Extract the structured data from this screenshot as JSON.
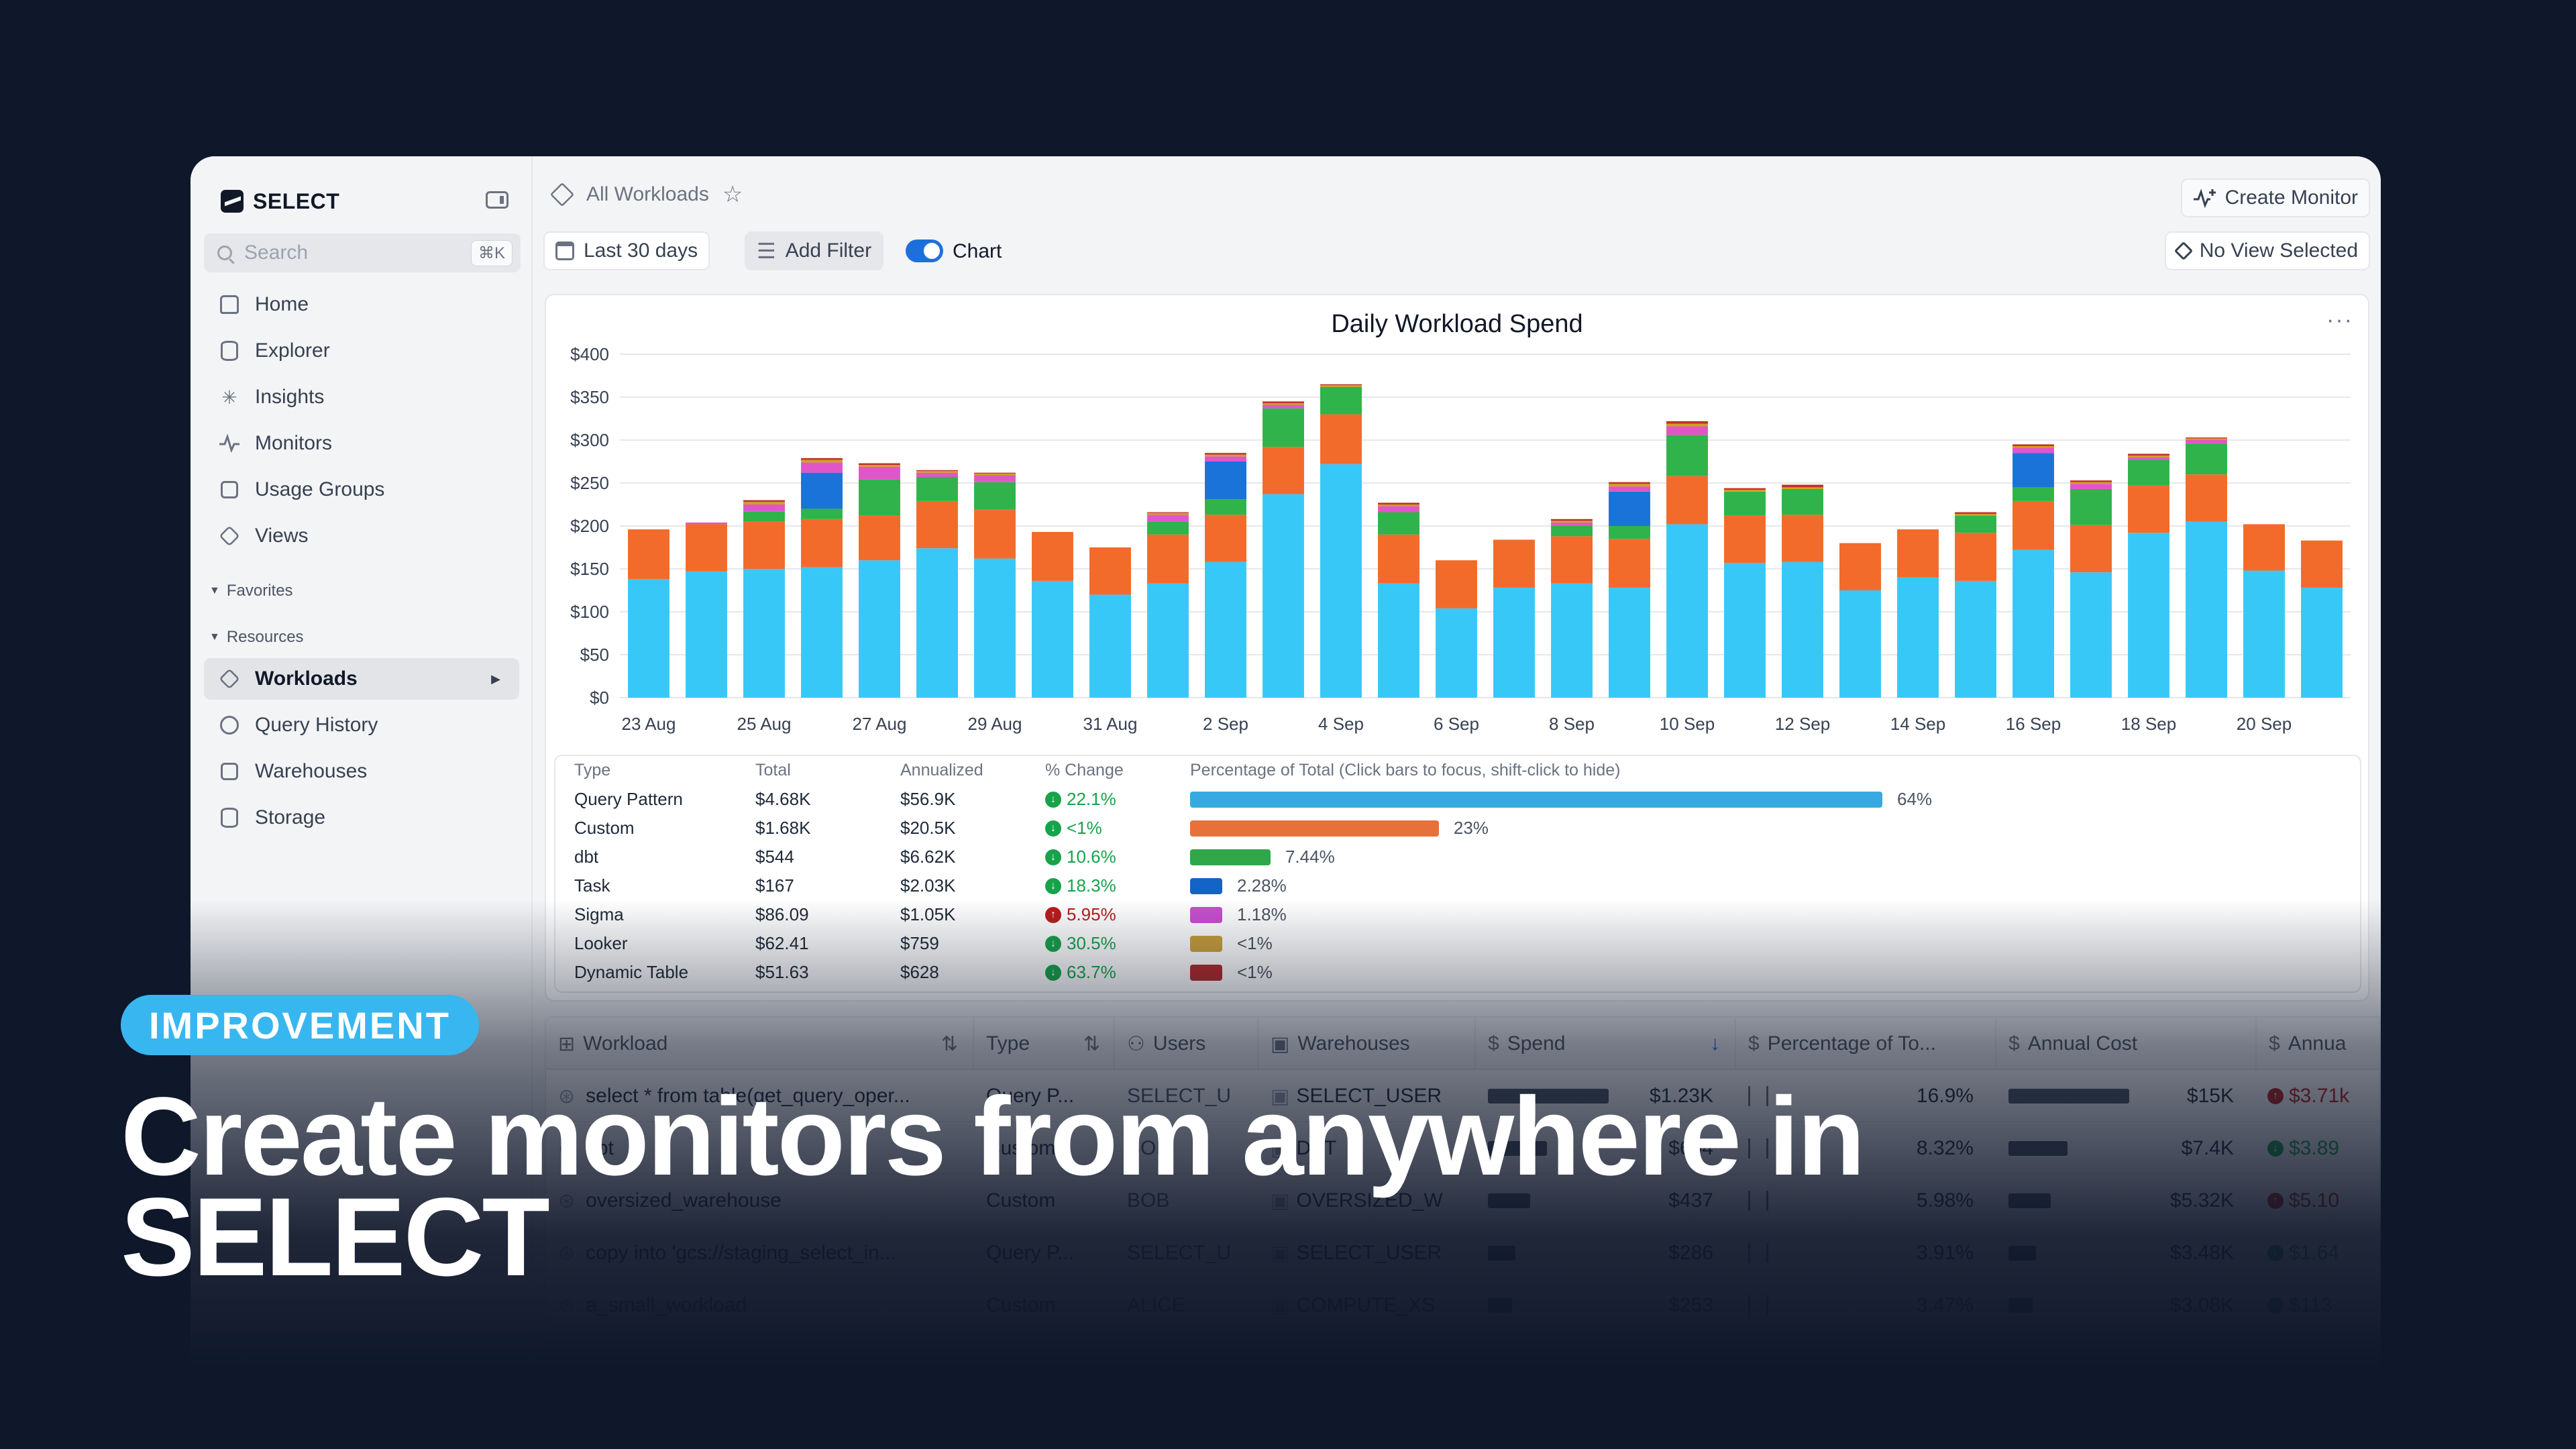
{
  "app": {
    "brand": "SELECT",
    "search_placeholder": "Search",
    "search_shortcut": "⌘K",
    "nav": [
      {
        "label": "Home",
        "icon": "home-icon"
      },
      {
        "label": "Explorer",
        "icon": "database-icon"
      },
      {
        "label": "Insights",
        "icon": "sparkle-icon"
      },
      {
        "label": "Monitors",
        "icon": "pulse-icon"
      },
      {
        "label": "Usage Groups",
        "icon": "group-icon"
      },
      {
        "label": "Views",
        "icon": "layers-icon"
      }
    ],
    "favorites_label": "Favorites",
    "resources_label": "Resources",
    "resources": [
      {
        "label": "Workloads",
        "icon": "cube-icon",
        "active": true
      },
      {
        "label": "Query History",
        "icon": "history-icon"
      },
      {
        "label": "Warehouses",
        "icon": "warehouse-icon"
      },
      {
        "label": "Storage",
        "icon": "storage-icon"
      }
    ]
  },
  "header": {
    "breadcrumb": "All Workloads",
    "create_monitor": "Create Monitor",
    "date_range": "Last 30 days",
    "add_filter": "Add Filter",
    "chart_toggle_label": "Chart",
    "chart_toggle_on": true,
    "view_selector": "No View Selected"
  },
  "chart_data": {
    "type": "bar",
    "stacked": true,
    "title": "Daily Workload Spend",
    "ylim": [
      0,
      400
    ],
    "yticks": [
      "$0",
      "$50",
      "$100",
      "$150",
      "$200",
      "$250",
      "$300",
      "$350",
      "$400"
    ],
    "categories": [
      "23 Aug",
      "24 Aug",
      "25 Aug",
      "26 Aug",
      "27 Aug",
      "28 Aug",
      "29 Aug",
      "30 Aug",
      "31 Aug",
      "1 Sep",
      "2 Sep",
      "3 Sep",
      "4 Sep",
      "5 Sep",
      "6 Sep",
      "7 Sep",
      "8 Sep",
      "9 Sep",
      "10 Sep",
      "11 Sep",
      "12 Sep",
      "13 Sep",
      "14 Sep",
      "15 Sep",
      "16 Sep",
      "17 Sep",
      "18 Sep",
      "19 Sep",
      "20 Sep",
      "21 Sep"
    ],
    "xtick_labels": [
      "23 Aug",
      "25 Aug",
      "27 Aug",
      "29 Aug",
      "31 Aug",
      "2 Sep",
      "4 Sep",
      "6 Sep",
      "8 Sep",
      "10 Sep",
      "12 Sep",
      "14 Sep",
      "16 Sep",
      "18 Sep",
      "20 Sep"
    ],
    "colors": {
      "Query Pattern": "#38c8f8",
      "Custom": "#f26b2b",
      "dbt": "#2fb34a",
      "Task": "#1a73d9",
      "Sigma": "#e056c9",
      "Looker": "#d4a017",
      "Dynamic Table": "#c0302b"
    },
    "series": [
      {
        "name": "Query Pattern",
        "values": [
          138,
          147,
          150,
          152,
          160,
          174,
          162,
          136,
          120,
          133,
          158,
          237,
          272,
          133,
          104,
          128,
          133,
          128,
          202,
          157,
          158,
          125,
          140,
          136,
          172,
          146,
          192,
          205,
          148,
          128
        ]
      },
      {
        "name": "Custom",
        "values": [
          58,
          55,
          55,
          56,
          52,
          55,
          57,
          57,
          55,
          57,
          55,
          55,
          58,
          57,
          56,
          56,
          55,
          57,
          56,
          55,
          55,
          55,
          56,
          56,
          57,
          55,
          55,
          55,
          54,
          55
        ]
      },
      {
        "name": "dbt",
        "values": [
          0,
          0,
          12,
          12,
          42,
          28,
          32,
          0,
          0,
          15,
          18,
          45,
          32,
          26,
          0,
          0,
          12,
          15,
          48,
          28,
          30,
          0,
          0,
          20,
          16,
          42,
          30,
          36,
          0,
          0
        ]
      },
      {
        "name": "Task",
        "values": [
          0,
          0,
          0,
          42,
          0,
          0,
          0,
          0,
          0,
          0,
          44,
          0,
          0,
          0,
          0,
          0,
          0,
          40,
          0,
          0,
          0,
          0,
          0,
          0,
          40,
          0,
          0,
          0,
          0,
          0
        ]
      },
      {
        "name": "Sigma",
        "values": [
          0,
          2,
          8,
          12,
          15,
          5,
          8,
          0,
          0,
          8,
          6,
          4,
          0,
          7,
          0,
          0,
          4,
          6,
          10,
          0,
          0,
          0,
          0,
          0,
          6,
          6,
          3,
          4,
          0,
          0
        ]
      },
      {
        "name": "Looker",
        "values": [
          0,
          0,
          3,
          3,
          2,
          2,
          2,
          0,
          0,
          2,
          2,
          2,
          2,
          2,
          0,
          0,
          2,
          3,
          3,
          2,
          2,
          0,
          0,
          2,
          2,
          2,
          2,
          2,
          0,
          0
        ]
      },
      {
        "name": "Dynamic Table",
        "values": [
          0,
          0,
          2,
          2,
          2,
          1,
          1,
          0,
          0,
          1,
          2,
          2,
          1,
          2,
          0,
          0,
          2,
          2,
          3,
          2,
          3,
          0,
          0,
          2,
          2,
          2,
          2,
          1,
          0,
          0
        ]
      }
    ]
  },
  "summary": {
    "headers": [
      "Type",
      "Total",
      "Annualized",
      "% Change",
      "Percentage of Total (Click bars to focus, shift-click to hide)"
    ],
    "rows": [
      {
        "type": "Query Pattern",
        "total": "$4.68K",
        "annualized": "$56.9K",
        "change": "22.1%",
        "direction": "down",
        "pct_label": "64%",
        "pct": 64,
        "color": "#36a9e1"
      },
      {
        "type": "Custom",
        "total": "$1.68K",
        "annualized": "$20.5K",
        "change": "<1%",
        "direction": "down",
        "pct_label": "23%",
        "pct": 23,
        "color": "#e8703a"
      },
      {
        "type": "dbt",
        "total": "$544",
        "annualized": "$6.62K",
        "change": "10.6%",
        "direction": "down",
        "pct_label": "7.44%",
        "pct": 7.44,
        "color": "#2fa84a"
      },
      {
        "type": "Task",
        "total": "$167",
        "annualized": "$2.03K",
        "change": "18.3%",
        "direction": "down",
        "pct_label": "2.28%",
        "pct": 2.28,
        "color": "#1663c7"
      },
      {
        "type": "Sigma",
        "total": "$86.09",
        "annualized": "$1.05K",
        "change": "5.95%",
        "direction": "up",
        "pct_label": "1.18%",
        "pct": 1.18,
        "color": "#c84fd0"
      },
      {
        "type": "Looker",
        "total": "$62.41",
        "annualized": "$759",
        "change": "30.5%",
        "direction": "down",
        "pct_label": "<1%",
        "pct": 0.85,
        "color": "#c9a03d"
      },
      {
        "type": "Dynamic Table",
        "total": "$51.63",
        "annualized": "$628",
        "change": "63.7%",
        "direction": "down",
        "pct_label": "<1%",
        "pct": 0.7,
        "color": "#b22a2a"
      }
    ]
  },
  "workload_table": {
    "headers": [
      "Workload",
      "Type",
      "Users",
      "Warehouses",
      "Spend",
      "Percentage of To...",
      "Annual Cost",
      "Annua"
    ],
    "rows": [
      {
        "workload": "select * from table(get_query_oper...",
        "type": "Query P...",
        "users": "SELECT_U",
        "warehouse": "SELECT_USER",
        "spend": "$1.23K",
        "spend_frac": 1.0,
        "pct": "16.9%",
        "annual": "$15K",
        "annual_frac": 1.0,
        "change": "$3.71k",
        "dir": "up"
      },
      {
        "workload": "dbt",
        "type": "Custom",
        "users": "BOB",
        "warehouse": "DBT",
        "spend": "$604",
        "spend_frac": 0.49,
        "pct": "8.32%",
        "annual": "$7.4K",
        "annual_frac": 0.49,
        "change": "$3.89",
        "dir": "down"
      },
      {
        "workload": "oversized_warehouse",
        "type": "Custom",
        "users": "BOB",
        "warehouse": "OVERSIZED_W",
        "spend": "$437",
        "spend_frac": 0.35,
        "pct": "5.98%",
        "annual": "$5.32K",
        "annual_frac": 0.35,
        "change": "$5.10",
        "dir": "up"
      },
      {
        "workload": "copy into 'gcs://staging_select_in...",
        "type": "Query P...",
        "users": "SELECT_U",
        "warehouse": "SELECT_USER",
        "spend": "$286",
        "spend_frac": 0.23,
        "pct": "3.91%",
        "annual": "$3.48K",
        "annual_frac": 0.23,
        "change": "$1.64",
        "dir": "down"
      },
      {
        "workload": "a_small_workload",
        "type": "Custom",
        "users": "ALICE",
        "warehouse": "COMPUTE_XS",
        "spend": "$253",
        "spend_frac": 0.2,
        "pct": "3.47%",
        "annual": "$3.08K",
        "annual_frac": 0.2,
        "change": "$113",
        "dir": "down"
      }
    ]
  },
  "promo": {
    "badge": "IMPROVEMENT",
    "headline_line1": "Create monitors from anywhere in",
    "headline_line2": "SELECT"
  }
}
